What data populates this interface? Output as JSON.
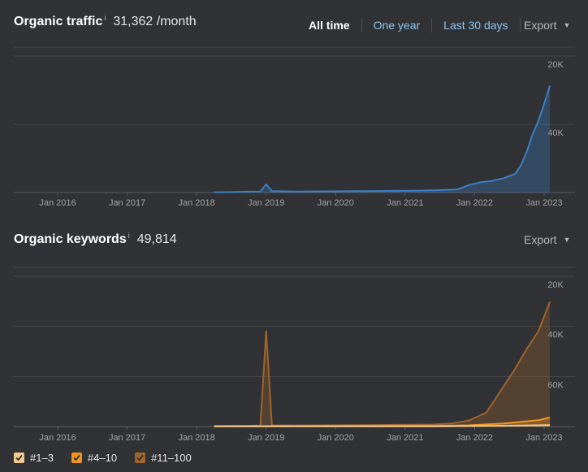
{
  "traffic": {
    "title": "Organic traffic",
    "info_glyph": "i",
    "value": "31,362 /month",
    "range_buttons": [
      "All time",
      "One year",
      "Last 30 days"
    ],
    "active_range": "All time",
    "export_label": "Export",
    "y_ticks": [
      "40K",
      "20K"
    ],
    "x_ticks": [
      "Jan 2016",
      "Jan 2017",
      "Jan 2018",
      "Jan 2019",
      "Jan 2020",
      "Jan 2021",
      "Jan 2022",
      "Jan 2023"
    ]
  },
  "keywords": {
    "title": "Organic keywords",
    "info_glyph": "i",
    "value": "49,814",
    "export_label": "Export",
    "y_ticks": [
      "60K",
      "40K",
      "20K"
    ],
    "x_ticks": [
      "Jan 2016",
      "Jan 2017",
      "Jan 2018",
      "Jan 2019",
      "Jan 2020",
      "Jan 2021",
      "Jan 2022",
      "Jan 2023"
    ]
  },
  "legend": [
    {
      "label": "#1–3",
      "color": "#f5c98c"
    },
    {
      "label": "#4–10",
      "color": "#f2951f"
    },
    {
      "label": "#11–100",
      "color": "#a0642b"
    }
  ],
  "chart_data": [
    {
      "type": "area",
      "series": [
        {
          "color": "#3d7fc1",
          "x": [
            "2018-04",
            "2018-07",
            "2018-10",
            "2018-12",
            "2019-01",
            "2019-02",
            "2019-06",
            "2020-01",
            "2020-06",
            "2021-01",
            "2021-06",
            "2021-10",
            "2021-12",
            "2022-02",
            "2022-04",
            "2022-06",
            "2022-08",
            "2022-09",
            "2022-10",
            "2022-11",
            "2022-12",
            "2023-01",
            "2023-02"
          ],
          "y": [
            100,
            150,
            250,
            300,
            2400,
            400,
            300,
            350,
            400,
            500,
            650,
            900,
            2200,
            3000,
            3400,
            4200,
            5500,
            8000,
            12000,
            17000,
            21000,
            26000,
            31362
          ]
        }
      ],
      "ylim": [
        0,
        40000
      ],
      "y_ticks": [
        20000,
        40000
      ],
      "x_ticks": [
        "Jan 2016",
        "Jan 2017",
        "Jan 2018",
        "Jan 2019",
        "Jan 2020",
        "Jan 2021",
        "Jan 2022",
        "Jan 2023"
      ]
    },
    {
      "type": "area",
      "series": [
        {
          "name": "#11–100",
          "color": "#a0642b",
          "x": [
            "2018-04",
            "2018-10",
            "2018-12",
            "2019-01",
            "2019-02",
            "2019-06",
            "2020-06",
            "2021-06",
            "2021-09",
            "2021-12",
            "2022-03",
            "2022-06",
            "2022-08",
            "2022-10",
            "2022-12",
            "2023-02"
          ],
          "y": [
            200,
            300,
            400,
            38000,
            500,
            400,
            600,
            800,
            1200,
            2400,
            5500,
            16000,
            23000,
            31000,
            38000,
            49814
          ]
        },
        {
          "name": "#4–10",
          "color": "#f2951f",
          "x": [
            "2018-04",
            "2019-06",
            "2021-06",
            "2021-12",
            "2022-06",
            "2022-12",
            "2023-02"
          ],
          "y": [
            100,
            150,
            250,
            500,
            1200,
            2500,
            3600
          ]
        },
        {
          "name": "#1–3",
          "color": "#f5c98c",
          "x": [
            "2018-04",
            "2021-06",
            "2022-06",
            "2023-02"
          ],
          "y": [
            50,
            100,
            300,
            600
          ]
        }
      ],
      "ylim": [
        0,
        60000
      ],
      "y_ticks": [
        20000,
        40000,
        60000
      ],
      "x_ticks": [
        "Jan 2016",
        "Jan 2017",
        "Jan 2018",
        "Jan 2019",
        "Jan 2020",
        "Jan 2021",
        "Jan 2022",
        "Jan 2023"
      ]
    }
  ]
}
